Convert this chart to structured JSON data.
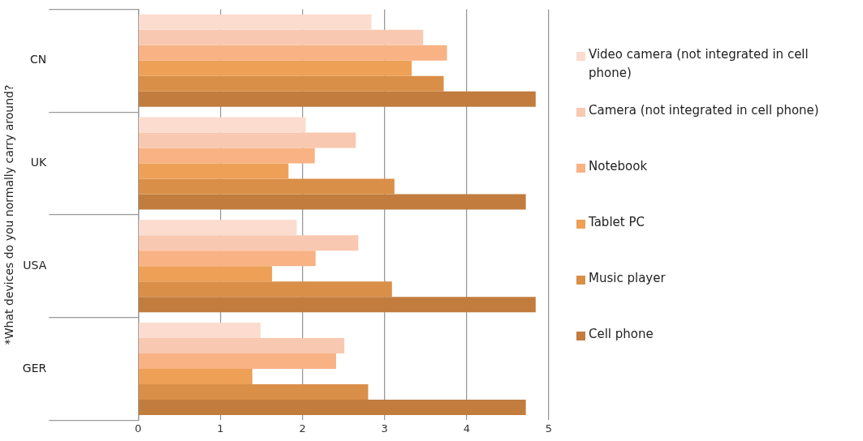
{
  "chart_data": {
    "type": "bar",
    "orientation": "horizontal",
    "ylabel": "*What devices do you normally carry around?",
    "categories": [
      "CN",
      "UK",
      "USA",
      "GER"
    ],
    "series": [
      {
        "name": "Video camera (not integrated in cell phone)",
        "color": "#fbdccf",
        "values": [
          2.84,
          2.04,
          1.93,
          1.49
        ]
      },
      {
        "name": "Camera (not integrated in cell phone)",
        "color": "#f9c8b0",
        "values": [
          3.47,
          2.65,
          2.68,
          2.51
        ]
      },
      {
        "name": "Notebook",
        "color": "#f8b283",
        "values": [
          3.76,
          2.15,
          2.16,
          2.41
        ]
      },
      {
        "name": "Tablet PC",
        "color": "#eda056",
        "values": [
          3.33,
          1.83,
          1.63,
          1.39
        ]
      },
      {
        "name": "Music player",
        "color": "#d98f48",
        "values": [
          3.72,
          3.12,
          3.09,
          2.8
        ]
      },
      {
        "name": "Cell phone",
        "color": "#c17c3e",
        "values": [
          4.84,
          4.72,
          4.84,
          4.72
        ]
      }
    ],
    "xlim": [
      0,
      5
    ],
    "xticks": [
      0,
      1,
      2,
      3,
      4,
      5
    ],
    "grid": "x",
    "legend": "right"
  }
}
